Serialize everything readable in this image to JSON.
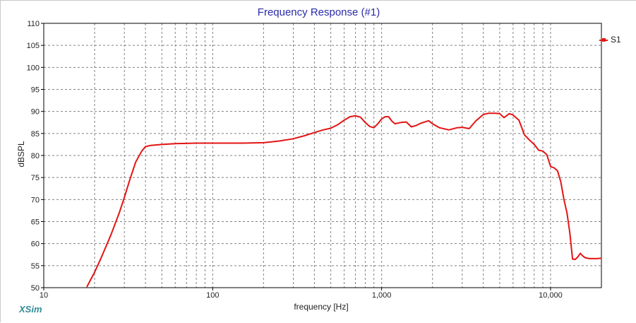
{
  "brand": "XSim",
  "colors": {
    "series": "#e41414",
    "title": "#2a2aa8",
    "brand": "#2f8b96",
    "grid": "#808080"
  },
  "chart_data": {
    "type": "line",
    "title": "Frequency Response (#1)",
    "xlabel": "frequency [Hz]",
    "ylabel": "dBSPL",
    "xscale": "log",
    "xlim": [
      10,
      20000
    ],
    "ylim": [
      50,
      110
    ],
    "grid": true,
    "legend_position": "right",
    "x_tick_labels": [
      {
        "value": 10,
        "label": "10"
      },
      {
        "value": 100,
        "label": "100"
      },
      {
        "value": 1000,
        "label": "1,000"
      },
      {
        "value": 10000,
        "label": "10,000"
      }
    ],
    "y_ticks": [
      50,
      55,
      60,
      65,
      70,
      75,
      80,
      85,
      90,
      95,
      100,
      105,
      110
    ],
    "series": [
      {
        "name": "S1",
        "color": "#e41414",
        "x": [
          18,
          20,
          22,
          25,
          28,
          30,
          32,
          35,
          38,
          40,
          43,
          50,
          60,
          80,
          100,
          150,
          200,
          250,
          300,
          350,
          400,
          450,
          500,
          550,
          600,
          650,
          700,
          750,
          800,
          850,
          900,
          950,
          1000,
          1050,
          1100,
          1150,
          1200,
          1300,
          1400,
          1500,
          1600,
          1700,
          1800,
          1900,
          2000,
          2200,
          2500,
          2800,
          3000,
          3300,
          3600,
          4000,
          4300,
          4700,
          5000,
          5300,
          5700,
          6000,
          6500,
          7000,
          7500,
          8000,
          8500,
          9000,
          9500,
          10000,
          10500,
          11000,
          11500,
          12000,
          12500,
          13000,
          13500,
          14000,
          14500,
          15000,
          15500,
          16000,
          17000,
          18000,
          19000,
          20000
        ],
        "y": [
          50.2,
          53.5,
          57,
          62,
          67,
          70.5,
          74,
          78.5,
          81,
          82,
          82.3,
          82.5,
          82.7,
          82.8,
          82.8,
          82.8,
          82.9,
          83.3,
          83.8,
          84.5,
          85.2,
          85.8,
          86.2,
          87,
          88,
          88.8,
          89,
          88.7,
          87.5,
          86.6,
          86.3,
          87.2,
          88.3,
          88.8,
          88.8,
          87.8,
          87.2,
          87.5,
          87.6,
          86.5,
          86.8,
          87.3,
          87.6,
          87.9,
          87.2,
          86.3,
          85.8,
          86.3,
          86.4,
          86.1,
          87.8,
          89.3,
          89.6,
          89.6,
          89.5,
          88.6,
          89.5,
          89.2,
          88,
          84.7,
          83.5,
          82.5,
          81.2,
          81,
          80.2,
          77.5,
          77.2,
          76.5,
          74,
          70,
          67,
          62.5,
          56.5,
          56.4,
          57,
          57.8,
          57.2,
          56.8,
          56.6,
          56.6,
          56.6,
          56.7
        ]
      }
    ]
  }
}
